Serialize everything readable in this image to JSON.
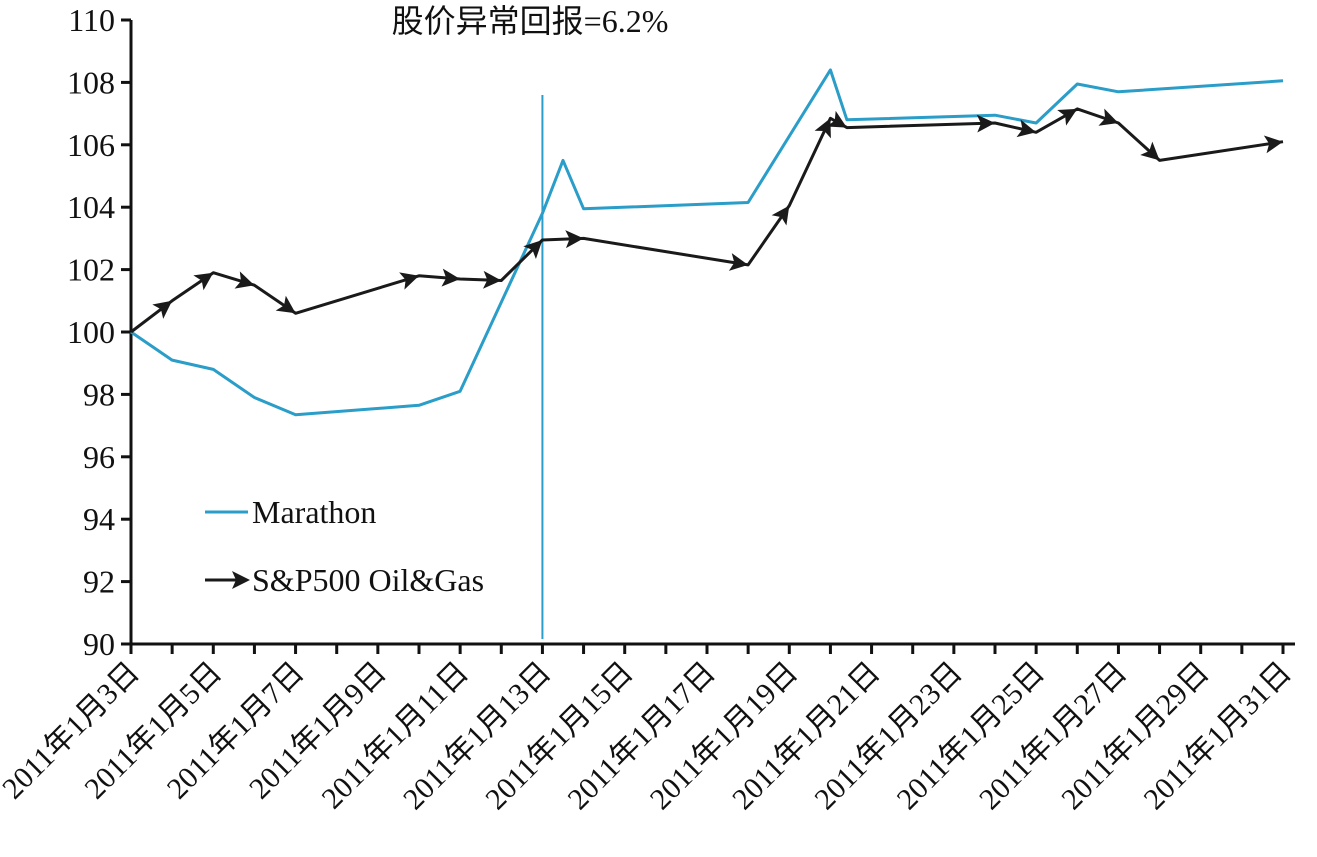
{
  "chart_data": {
    "type": "line",
    "title": "",
    "xlabel": "",
    "ylabel": "",
    "ylim": [
      90,
      110
    ],
    "yticks": [
      "90",
      "92",
      "94",
      "96",
      "98",
      "100",
      "102",
      "104",
      "106",
      "108",
      "110"
    ],
    "x_range_days": [
      3,
      31
    ],
    "x_tick_labels": [
      {
        "day": 3,
        "label": "2011年1月3日"
      },
      {
        "day": 5,
        "label": "2011年1月5日"
      },
      {
        "day": 7,
        "label": "2011年1月7日"
      },
      {
        "day": 9,
        "label": "2011年1月9日"
      },
      {
        "day": 11,
        "label": "2011年1月11日"
      },
      {
        "day": 13,
        "label": "2011年1月13日"
      },
      {
        "day": 15,
        "label": "2011年1月15日"
      },
      {
        "day": 17,
        "label": "2011年1月17日"
      },
      {
        "day": 19,
        "label": "2011年1月19日"
      },
      {
        "day": 21,
        "label": "2011年1月21日"
      },
      {
        "day": 23,
        "label": "2011年1月23日"
      },
      {
        "day": 25,
        "label": "2011年1月25日"
      },
      {
        "day": 27,
        "label": "2011年1月27日"
      },
      {
        "day": 29,
        "label": "2011年1月29日"
      },
      {
        "day": 31,
        "label": "2011年1月31日"
      }
    ],
    "annotation": {
      "text": "股价异常回报=6.2%"
    },
    "event_line": {
      "day": 13,
      "color": "#2a9dc8"
    },
    "legend": {
      "placement": "lower-left"
    },
    "grid": false,
    "series": [
      {
        "name": "Marathon",
        "color": "#2a9dc8",
        "marker": "none",
        "points": [
          [
            3,
            100.0
          ],
          [
            4,
            99.1
          ],
          [
            5,
            98.8
          ],
          [
            6,
            97.9
          ],
          [
            7,
            97.35
          ],
          [
            10,
            97.65
          ],
          [
            11,
            98.1
          ],
          [
            13,
            103.8
          ],
          [
            13.5,
            105.5
          ],
          [
            14,
            103.95
          ],
          [
            18,
            104.15
          ],
          [
            20,
            108.4
          ],
          [
            20.4,
            106.8
          ],
          [
            24,
            106.95
          ],
          [
            25,
            106.7
          ],
          [
            26,
            107.95
          ],
          [
            27,
            107.7
          ],
          [
            31,
            108.05
          ]
        ]
      },
      {
        "name": "S&P500 Oil&Gas",
        "color": "#1a1a1a",
        "marker": "arrow",
        "points": [
          [
            3,
            100.0
          ],
          [
            4,
            101.0
          ],
          [
            5,
            101.9
          ],
          [
            6,
            101.5
          ],
          [
            7,
            100.6
          ],
          [
            10,
            101.8
          ],
          [
            11,
            101.7
          ],
          [
            12,
            101.65
          ],
          [
            13,
            102.95
          ],
          [
            14,
            103.0
          ],
          [
            18,
            102.15
          ],
          [
            19,
            104.05
          ],
          [
            20,
            106.85
          ],
          [
            20.4,
            106.55
          ],
          [
            24,
            106.7
          ],
          [
            25,
            106.4
          ],
          [
            26,
            107.15
          ],
          [
            27,
            106.7
          ],
          [
            28,
            105.5
          ],
          [
            31,
            106.1
          ]
        ]
      }
    ]
  }
}
